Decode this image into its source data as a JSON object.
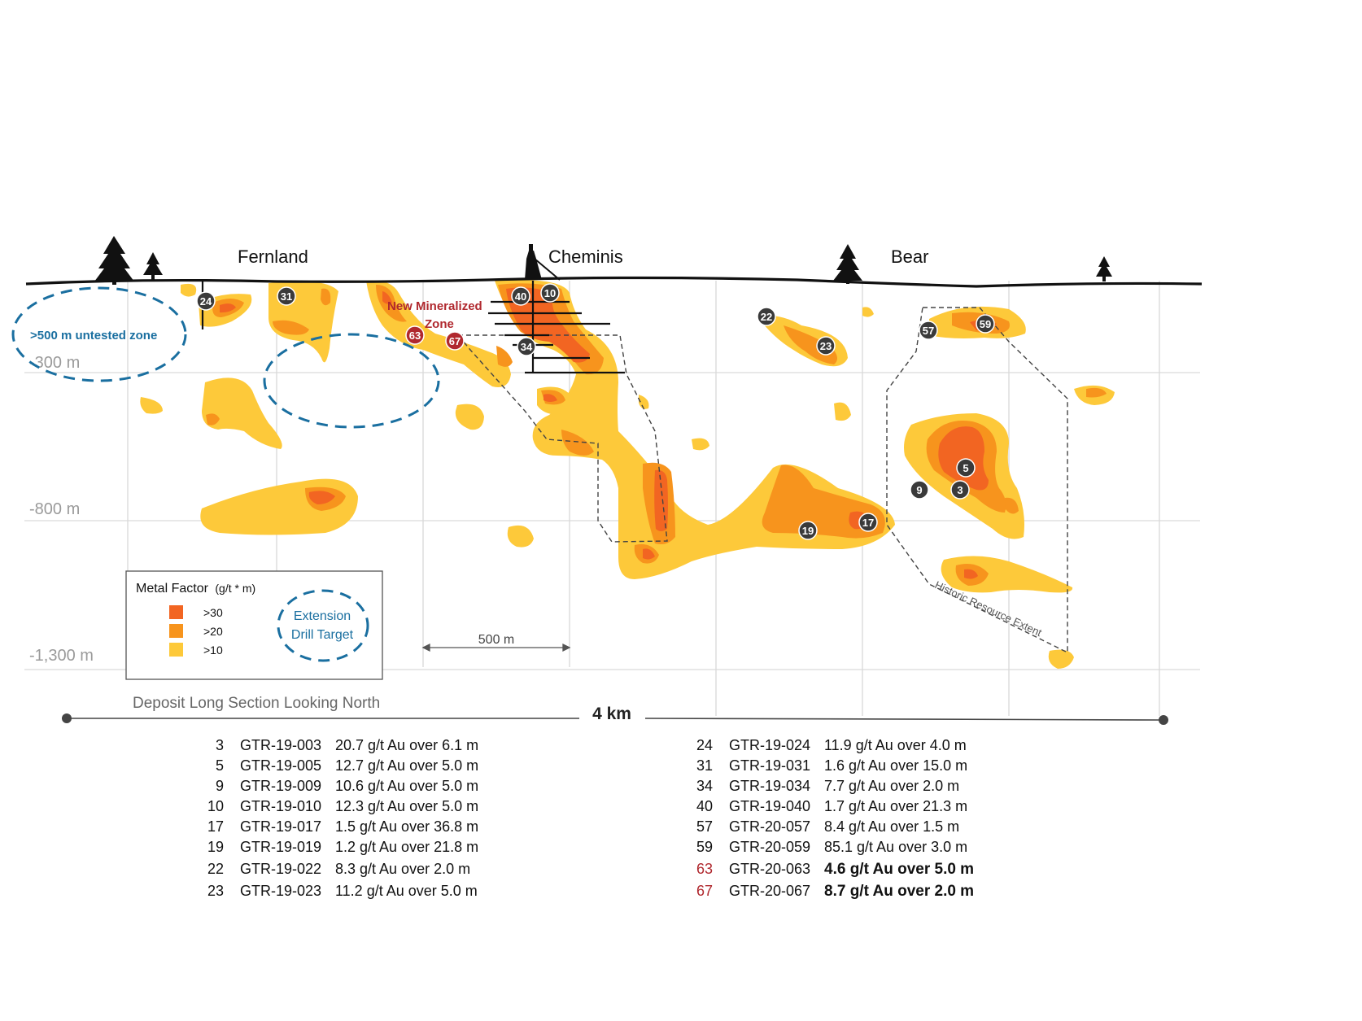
{
  "locations": [
    {
      "name": "Fernland"
    },
    {
      "name": "Cheminis"
    },
    {
      "name": "Bear"
    }
  ],
  "depth_labels": [
    "-300 m",
    "-800 m",
    "-1,300 m"
  ],
  "annotations": {
    "untested_zone": ">500 m untested zone",
    "new_zone_line1": "New Mineralized",
    "new_zone_line2": "Zone",
    "historic_resource": "Historic Resource Extent"
  },
  "legend": {
    "title": "Metal Factor",
    "title_unit": "(g/t * m)",
    "items": [
      {
        "label": ">30",
        "color": "#f26522"
      },
      {
        "label": ">20",
        "color": "#f7941d"
      },
      {
        "label": ">10",
        "color": "#fdc93a"
      }
    ],
    "extension_line1": "Extension",
    "extension_line2": "Drill Target"
  },
  "scale_bar": {
    "label": "500 m"
  },
  "section_title": "Deposit Long Section Looking North",
  "total_length": "4 km",
  "colors": {
    "tier30": "#f26522",
    "tier20": "#f7941d",
    "tier10": "#fdc93a",
    "hole_dark": "#3a3a3a",
    "hole_new": "#b0282e",
    "target_blue": "#1a6fa0"
  },
  "drill_holes": [
    {
      "num": "3",
      "id": "GTR-19-003",
      "result": "20.7 g/t Au over 6.1 m",
      "new": false
    },
    {
      "num": "5",
      "id": "GTR-19-005",
      "result": "12.7 g/t Au over 5.0 m",
      "new": false
    },
    {
      "num": "9",
      "id": "GTR-19-009",
      "result": "10.6 g/t Au over 5.0 m",
      "new": false
    },
    {
      "num": "10",
      "id": "GTR-19-010",
      "result": "12.3 g/t Au over 5.0 m",
      "new": false
    },
    {
      "num": "17",
      "id": "GTR-19-017",
      "result": "1.5 g/t Au over 36.8 m",
      "new": false
    },
    {
      "num": "19",
      "id": "GTR-19-019",
      "result": "1.2 g/t Au over 21.8 m",
      "new": false
    },
    {
      "num": "22",
      "id": "GTR-19-022",
      "result": "8.3 g/t Au over 2.0 m",
      "new": false
    },
    {
      "num": "23",
      "id": "GTR-19-023",
      "result": "11.2 g/t Au over 5.0 m",
      "new": false
    },
    {
      "num": "24",
      "id": "GTR-19-024",
      "result": "11.9 g/t Au over 4.0 m",
      "new": false
    },
    {
      "num": "31",
      "id": "GTR-19-031",
      "result": "1.6 g/t Au over 15.0 m",
      "new": false
    },
    {
      "num": "34",
      "id": "GTR-19-034",
      "result": "7.7 g/t Au over 2.0 m",
      "new": false
    },
    {
      "num": "40",
      "id": "GTR-19-040",
      "result": "1.7 g/t Au over 21.3 m",
      "new": false
    },
    {
      "num": "57",
      "id": "GTR-20-057",
      "result": "8.4 g/t Au over 1.5 m",
      "new": false
    },
    {
      "num": "59",
      "id": "GTR-20-059",
      "result": "85.1 g/t  Au over 3.0 m",
      "new": false
    },
    {
      "num": "63",
      "id": "GTR-20-063",
      "result": "4.6 g/t Au over 5.0 m",
      "new": true
    },
    {
      "num": "67",
      "id": "GTR-20-067",
      "result": "8.7 g/t Au over 2.0 m",
      "new": true
    }
  ]
}
